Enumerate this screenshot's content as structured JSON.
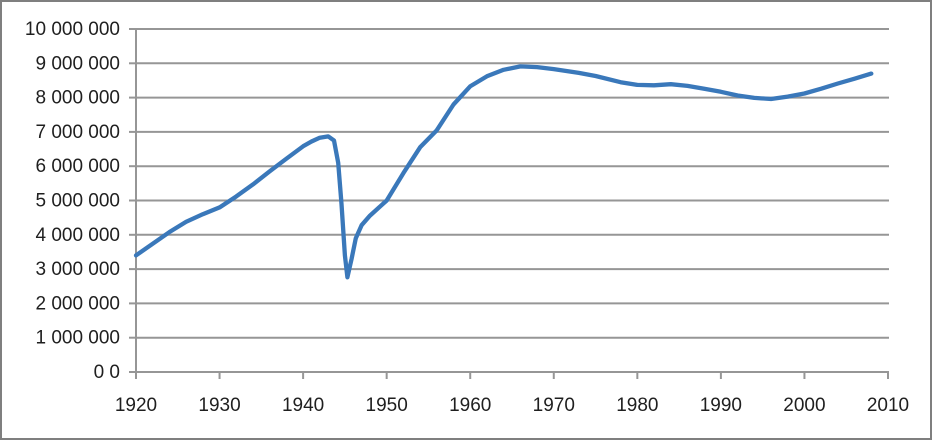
{
  "chart_frame": {
    "border_color": "#7f7f7f",
    "background_color": "#ffffff"
  },
  "chart_data": {
    "type": "line",
    "title": "",
    "xlabel": "",
    "ylabel": "",
    "legend_position": "none",
    "grid": "horizontal",
    "xlim": [
      1920,
      2010
    ],
    "ylim": [
      0,
      10000000
    ],
    "x_ticks": [
      "1920",
      "1930",
      "1940",
      "1950",
      "1960",
      "1970",
      "1980",
      "1990",
      "2000",
      "2010"
    ],
    "y_ticks": [
      {
        "value": 0,
        "label": "0 0"
      },
      {
        "value": 1000000,
        "label": "1 000 000"
      },
      {
        "value": 2000000,
        "label": "2 000 000"
      },
      {
        "value": 3000000,
        "label": "3 000 000"
      },
      {
        "value": 4000000,
        "label": "4 000 000"
      },
      {
        "value": 5000000,
        "label": "5 000 000"
      },
      {
        "value": 6000000,
        "label": "6 000 000"
      },
      {
        "value": 7000000,
        "label": "7 000 000"
      },
      {
        "value": 8000000,
        "label": "8 000 000"
      },
      {
        "value": 9000000,
        "label": "9 000 000"
      },
      {
        "value": 10000000,
        "label": "10 000 000"
      }
    ],
    "line_color": "#3a78ba",
    "grid_color": "#969696",
    "axis_color": "#969696",
    "label_color": "#1f1f1f",
    "series": [
      {
        "name": "value",
        "points": [
          [
            1920,
            3400000
          ],
          [
            1922,
            3740000
          ],
          [
            1924,
            4080000
          ],
          [
            1926,
            4380000
          ],
          [
            1928,
            4600000
          ],
          [
            1930,
            4800000
          ],
          [
            1932,
            5120000
          ],
          [
            1934,
            5470000
          ],
          [
            1936,
            5850000
          ],
          [
            1938,
            6220000
          ],
          [
            1940,
            6580000
          ],
          [
            1941,
            6720000
          ],
          [
            1942,
            6830000
          ],
          [
            1943,
            6870000
          ],
          [
            1943.7,
            6750000
          ],
          [
            1944.2,
            6100000
          ],
          [
            1944.6,
            4900000
          ],
          [
            1945,
            3400000
          ],
          [
            1945.3,
            2760000
          ],
          [
            1945.8,
            3300000
          ],
          [
            1946.3,
            3900000
          ],
          [
            1947,
            4280000
          ],
          [
            1948,
            4560000
          ],
          [
            1950,
            5000000
          ],
          [
            1952,
            5800000
          ],
          [
            1954,
            6550000
          ],
          [
            1956,
            7050000
          ],
          [
            1958,
            7800000
          ],
          [
            1960,
            8330000
          ],
          [
            1962,
            8620000
          ],
          [
            1964,
            8810000
          ],
          [
            1966,
            8910000
          ],
          [
            1968,
            8890000
          ],
          [
            1970,
            8830000
          ],
          [
            1973,
            8720000
          ],
          [
            1975,
            8630000
          ],
          [
            1978,
            8450000
          ],
          [
            1980,
            8370000
          ],
          [
            1982,
            8360000
          ],
          [
            1984,
            8390000
          ],
          [
            1986,
            8340000
          ],
          [
            1988,
            8260000
          ],
          [
            1990,
            8170000
          ],
          [
            1992,
            8060000
          ],
          [
            1994,
            7990000
          ],
          [
            1996,
            7960000
          ],
          [
            1998,
            8030000
          ],
          [
            2000,
            8120000
          ],
          [
            2002,
            8260000
          ],
          [
            2004,
            8410000
          ],
          [
            2006,
            8550000
          ],
          [
            2008,
            8700000
          ]
        ]
      }
    ]
  }
}
